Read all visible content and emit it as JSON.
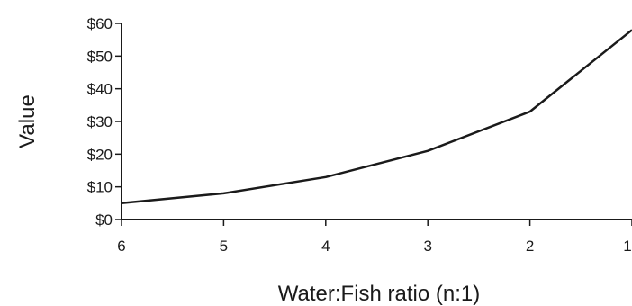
{
  "chart_data": {
    "type": "line",
    "title": "",
    "xlabel": "Water:Fish ratio (n:1)",
    "ylabel": "Value",
    "x": [
      6,
      5,
      4,
      3,
      2,
      1
    ],
    "x_tick_labels": [
      "6",
      "5",
      "4",
      "3",
      "2",
      "1"
    ],
    "x_direction": "descending",
    "y_tick_labels": [
      "$0",
      "$10",
      "$20",
      "$30",
      "$40",
      "$50",
      "$60"
    ],
    "y_ticks": [
      0,
      10,
      20,
      30,
      40,
      50,
      60
    ],
    "ylim": [
      0,
      60
    ],
    "grid": false,
    "series": [
      {
        "values": [
          5,
          8,
          13,
          21,
          33,
          58
        ]
      }
    ],
    "colors": {
      "line": "#1a1a1a",
      "axis": "#1a1a1a"
    }
  }
}
